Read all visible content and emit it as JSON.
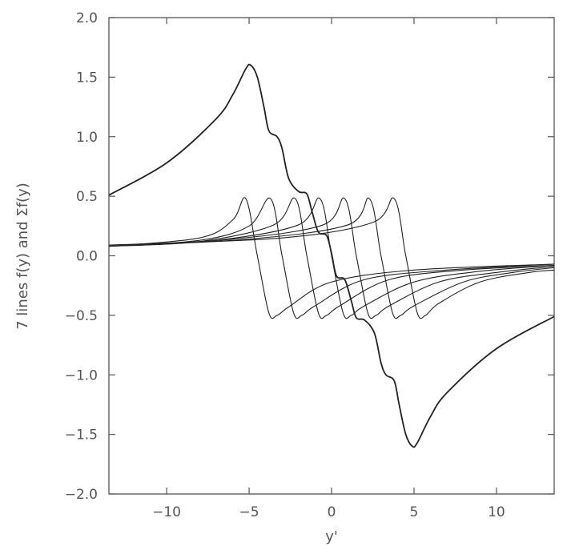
{
  "chart_data": {
    "type": "line",
    "title": "",
    "xlabel": "y'",
    "ylabel": "7 lines f(y) and Σf(y)",
    "xlim": [
      -13.5,
      13.5
    ],
    "ylim": [
      -2.0,
      2.0
    ],
    "x_ticks": [
      -10,
      -5,
      0,
      5,
      10
    ],
    "y_ticks": [
      -2.0,
      -1.5,
      -1.0,
      -0.5,
      0.0,
      0.5,
      1.0,
      1.5,
      2.0
    ],
    "x_tick_labels": [
      "−10",
      "−5",
      "0",
      "5",
      "10"
    ],
    "y_tick_labels": [
      "−2.0",
      "−1.5",
      "−1.0",
      "−0.5",
      "0.0",
      "0.5",
      "1.0",
      "1.5",
      "2.0"
    ],
    "grid": false,
    "legend": "none",
    "line_color": "#222222",
    "line_centers": [
      -4.5,
      -3.0,
      -1.5,
      0.0,
      1.5,
      3.0,
      4.5
    ],
    "line_half_width": 0.6,
    "line_peak": 0.5,
    "series": [
      {
        "x": [
          -13.5,
          -10,
          -7,
          -6,
          -5.2,
          -4.9,
          -4.5,
          -4.1,
          -3.8,
          -3.3,
          -3.0,
          -2.6,
          -2.0,
          -1.5,
          -1.2,
          -0.8,
          -0.3,
          0.0,
          0.3,
          0.8,
          1.2,
          1.5,
          2.0,
          2.6,
          3.0,
          3.3,
          3.8,
          4.1,
          4.5,
          4.9,
          5.2,
          6,
          7,
          10,
          13.5
        ],
        "y": [
          0.51,
          0.78,
          1.15,
          1.35,
          1.57,
          1.6,
          1.5,
          1.25,
          1.05,
          1.0,
          0.9,
          0.65,
          0.54,
          0.52,
          0.38,
          0.2,
          0.17,
          0.02,
          -0.17,
          -0.2,
          -0.38,
          -0.52,
          -0.54,
          -0.65,
          -0.9,
          -1.0,
          -1.05,
          -1.25,
          -1.5,
          -1.6,
          -1.57,
          -1.35,
          -1.15,
          -0.78,
          -0.51
        ]
      },
      {
        "x": [
          -13.5,
          -8,
          -6,
          -5.2,
          -4.5,
          -3.8,
          -3.3,
          -2.5,
          0,
          5,
          13.5
        ],
        "y": [
          0.08,
          0.15,
          0.3,
          0.48,
          0.0,
          -0.48,
          -0.5,
          -0.42,
          -0.22,
          -0.12,
          -0.07
        ]
      },
      {
        "x": [
          -13.5,
          -8,
          -5,
          -3.7,
          -3.0,
          -2.3,
          -1.8,
          -1,
          2,
          7,
          13.5
        ],
        "y": [
          0.08,
          0.13,
          0.25,
          0.48,
          0.0,
          -0.48,
          -0.5,
          -0.42,
          -0.2,
          -0.12,
          -0.07
        ]
      },
      {
        "x": [
          -13.5,
          -8,
          -3.5,
          -2.2,
          -1.5,
          -0.8,
          -0.3,
          0.5,
          3.5,
          8,
          13.5
        ],
        "y": [
          0.08,
          0.12,
          0.26,
          0.48,
          0.0,
          -0.48,
          -0.5,
          -0.42,
          -0.2,
          -0.12,
          -0.08
        ]
      },
      {
        "x": [
          -13.5,
          -7,
          -2,
          -0.7,
          0.0,
          0.7,
          1.2,
          2,
          5,
          9,
          13.5
        ],
        "y": [
          0.08,
          0.13,
          0.26,
          0.48,
          0.0,
          -0.48,
          -0.5,
          -0.42,
          -0.22,
          -0.13,
          -0.08
        ]
      },
      {
        "x": [
          -13.5,
          -6,
          -0.5,
          0.8,
          1.5,
          2.2,
          2.7,
          3.5,
          6.5,
          10,
          13.5
        ],
        "y": [
          0.08,
          0.14,
          0.26,
          0.48,
          0.0,
          -0.48,
          -0.5,
          -0.42,
          -0.22,
          -0.14,
          -0.09
        ]
      },
      {
        "x": [
          -13.5,
          -5,
          1,
          2.3,
          3.0,
          3.7,
          4.2,
          5,
          8,
          11,
          13.5
        ],
        "y": [
          0.08,
          0.14,
          0.26,
          0.48,
          0.0,
          -0.48,
          -0.5,
          -0.42,
          -0.22,
          -0.14,
          -0.1
        ]
      },
      {
        "x": [
          -13.5,
          -3,
          2.5,
          3.8,
          4.5,
          5.2,
          5.7,
          6.5,
          9,
          12,
          13.5
        ],
        "y": [
          0.09,
          0.15,
          0.28,
          0.48,
          0.0,
          -0.48,
          -0.5,
          -0.4,
          -0.22,
          -0.14,
          -0.12
        ]
      }
    ]
  }
}
